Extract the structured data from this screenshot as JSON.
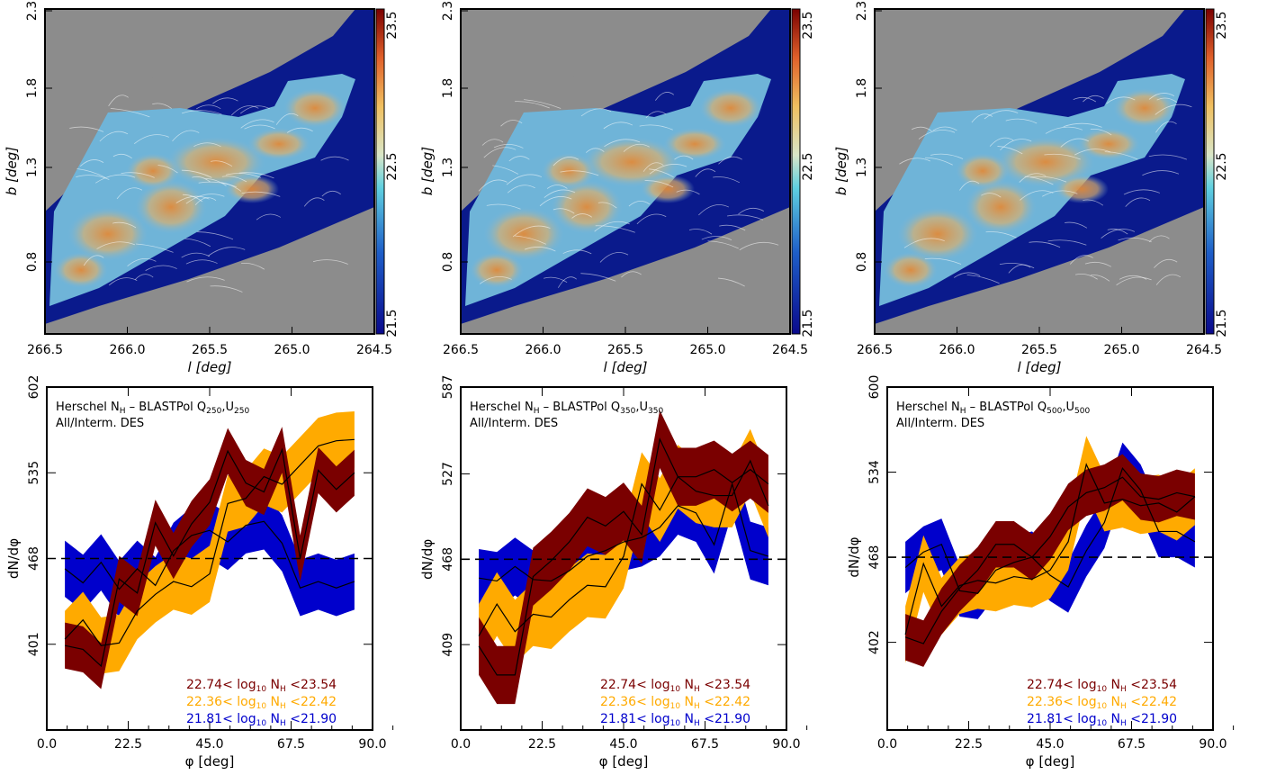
{
  "charts": {
    "maps": [
      {
        "xlabel": "l [deg]",
        "ylabel": "b [deg]",
        "xticks": [
          "266.5",
          "266.0",
          "265.5",
          "265.0",
          "264.5"
        ],
        "yticks": [
          "0.8",
          "1.3",
          "1.8",
          "2.3"
        ],
        "cbar_ticks": [
          "21.5",
          "22.5",
          "23.5"
        ]
      },
      {
        "xlabel": "l [deg]",
        "ylabel": "b [deg]",
        "xticks": [
          "266.5",
          "266.0",
          "265.5",
          "265.0",
          "264.5"
        ],
        "yticks": [
          "0.8",
          "1.3",
          "1.8",
          "2.3"
        ],
        "cbar_ticks": [
          "21.5",
          "22.5",
          "23.5"
        ]
      },
      {
        "xlabel": "l [deg]",
        "ylabel": "b [deg]",
        "xticks": [
          "266.5",
          "266.0",
          "265.5",
          "265.0",
          "264.5"
        ],
        "yticks": [
          "0.8",
          "1.3",
          "1.8",
          "2.3"
        ],
        "cbar_ticks": [
          "21.5",
          "22.5",
          "23.5"
        ]
      }
    ],
    "histos": [
      {
        "title_prefix": "Herschel N",
        "title_sub": "H",
        "title_mid": " – BLASTPol Q",
        "q_sub": "250",
        "u_text": ",U",
        "u_sub": "250",
        "subtitle": "All/Interm. DES",
        "xticks": [
          "0.0",
          "22.5",
          "45.0",
          "67.5",
          "90.0"
        ],
        "yticks": [
          "401",
          "468",
          "535",
          "602"
        ],
        "xlabel": "φ [deg]",
        "ylabel": "dN/dφ"
      },
      {
        "title_prefix": "Herschel N",
        "title_sub": "H",
        "title_mid": " – BLASTPol Q",
        "q_sub": "350",
        "u_text": ",U",
        "u_sub": "350",
        "subtitle": "All/Interm. DES",
        "xticks": [
          "0.0",
          "22.5",
          "45.0",
          "67.5",
          "90.0"
        ],
        "yticks": [
          "409",
          "468",
          "527",
          "587"
        ],
        "xlabel": "φ [deg]",
        "ylabel": "dN/dφ"
      },
      {
        "title_prefix": "Herschel N",
        "title_sub": "H",
        "title_mid": " – BLASTPol Q",
        "q_sub": "500",
        "u_text": ",U",
        "u_sub": "500",
        "subtitle": "All/Interm. DES",
        "xticks": [
          "0.0",
          "22.5",
          "45.0",
          "67.5",
          "90.0"
        ],
        "yticks": [
          "402",
          "468",
          "534",
          "600"
        ],
        "xlabel": "φ [deg]",
        "ylabel": "dN/dφ"
      }
    ],
    "legend": [
      {
        "low": "22.74<",
        "mid": "log",
        "sub1": "10",
        "nh": "N",
        "sub2": "H",
        "high": "<23.54",
        "color": "#7a0000"
      },
      {
        "low": "22.36<",
        "mid": "log",
        "sub1": "10",
        "nh": "N",
        "sub2": "H",
        "high": "<22.42",
        "color": "#ffaa00"
      },
      {
        "low": "21.81<",
        "mid": "log",
        "sub1": "10",
        "nh": "N",
        "sub2": "H",
        "high": "<21.90",
        "color": "#0000cc"
      }
    ],
    "colors": {
      "dark_red": "#7a0000",
      "orange": "#ffaa00",
      "blue": "#0000cc",
      "map_background": "#8c8c8c",
      "map_low": "#0a1a8c"
    }
  },
  "chart_data": [
    {
      "type": "line",
      "panel": "histogram-250",
      "xlim": [
        0,
        90
      ],
      "ylim": [
        334,
        602
      ],
      "reference_line": 468,
      "x": [
        5,
        10,
        15,
        20,
        25,
        30,
        35,
        40,
        45,
        50,
        55,
        60,
        65,
        70,
        75,
        80,
        85
      ],
      "series": [
        {
          "color": "#0000cc",
          "values": [
            460,
            449,
            465,
            444,
            460,
            447,
            474,
            486,
            490,
            481,
            494,
            497,
            480,
            445,
            450,
            445,
            450
          ],
          "band": 22
        },
        {
          "color": "#ffaa00",
          "values": [
            405,
            420,
            400,
            402,
            427,
            440,
            450,
            446,
            456,
            511,
            515,
            532,
            526,
            541,
            556,
            560,
            561
          ],
          "band": 22
        },
        {
          "color": "#7a0000",
          "values": [
            400,
            397,
            384,
            452,
            441,
            496,
            470,
            495,
            512,
            552,
            527,
            520,
            553,
            468,
            537,
            522,
            535
          ],
          "band": 18
        }
      ]
    },
    {
      "type": "line",
      "panel": "histogram-350",
      "xlim": [
        0,
        90
      ],
      "ylim": [
        350,
        587
      ],
      "reference_line": 468,
      "x": [
        5,
        10,
        15,
        20,
        25,
        30,
        35,
        40,
        45,
        50,
        55,
        60,
        65,
        70,
        75,
        80,
        85
      ],
      "series": [
        {
          "color": "#0000cc",
          "values": [
            455,
            453,
            463,
            454,
            453,
            460,
            470,
            474,
            480,
            483,
            490,
            505,
            500,
            478,
            520,
            474,
            470
          ],
          "band": 20
        },
        {
          "color": "#ffaa00",
          "values": [
            415,
            437,
            418,
            430,
            428,
            440,
            450,
            449,
            470,
            520,
            502,
            525,
            515,
            512,
            512,
            536,
            505
          ],
          "band": 22
        },
        {
          "color": "#7a0000",
          "values": [
            408,
            388,
            388,
            456,
            467,
            480,
            497,
            491,
            501,
            485,
            551,
            525,
            525,
            530,
            521,
            530,
            520
          ],
          "band": 20
        }
      ]
    },
    {
      "type": "line",
      "panel": "histogram-500",
      "xlim": [
        0,
        90
      ],
      "ylim": [
        334,
        600
      ],
      "reference_line": 468,
      "x": [
        5,
        10,
        15,
        20,
        25,
        30,
        35,
        40,
        45,
        50,
        55,
        60,
        65,
        70,
        75,
        80,
        85
      ],
      "series": [
        {
          "color": "#0000cc",
          "values": [
            460,
            472,
            478,
            442,
            440,
            458,
            464,
            468,
            454,
            445,
            473,
            495,
            537,
            520,
            488,
            488,
            480
          ],
          "band": 20
        },
        {
          "color": "#ffaa00",
          "values": [
            408,
            463,
            430,
            446,
            450,
            448,
            453,
            451,
            458,
            480,
            540,
            510,
            513,
            508,
            510,
            503,
            515
          ],
          "band": 22
        },
        {
          "color": "#7a0000",
          "values": [
            406,
            401,
            426,
            444,
            458,
            478,
            478,
            468,
            484,
            507,
            518,
            522,
            530,
            515,
            513,
            518,
            515
          ],
          "band": 18
        }
      ]
    }
  ]
}
